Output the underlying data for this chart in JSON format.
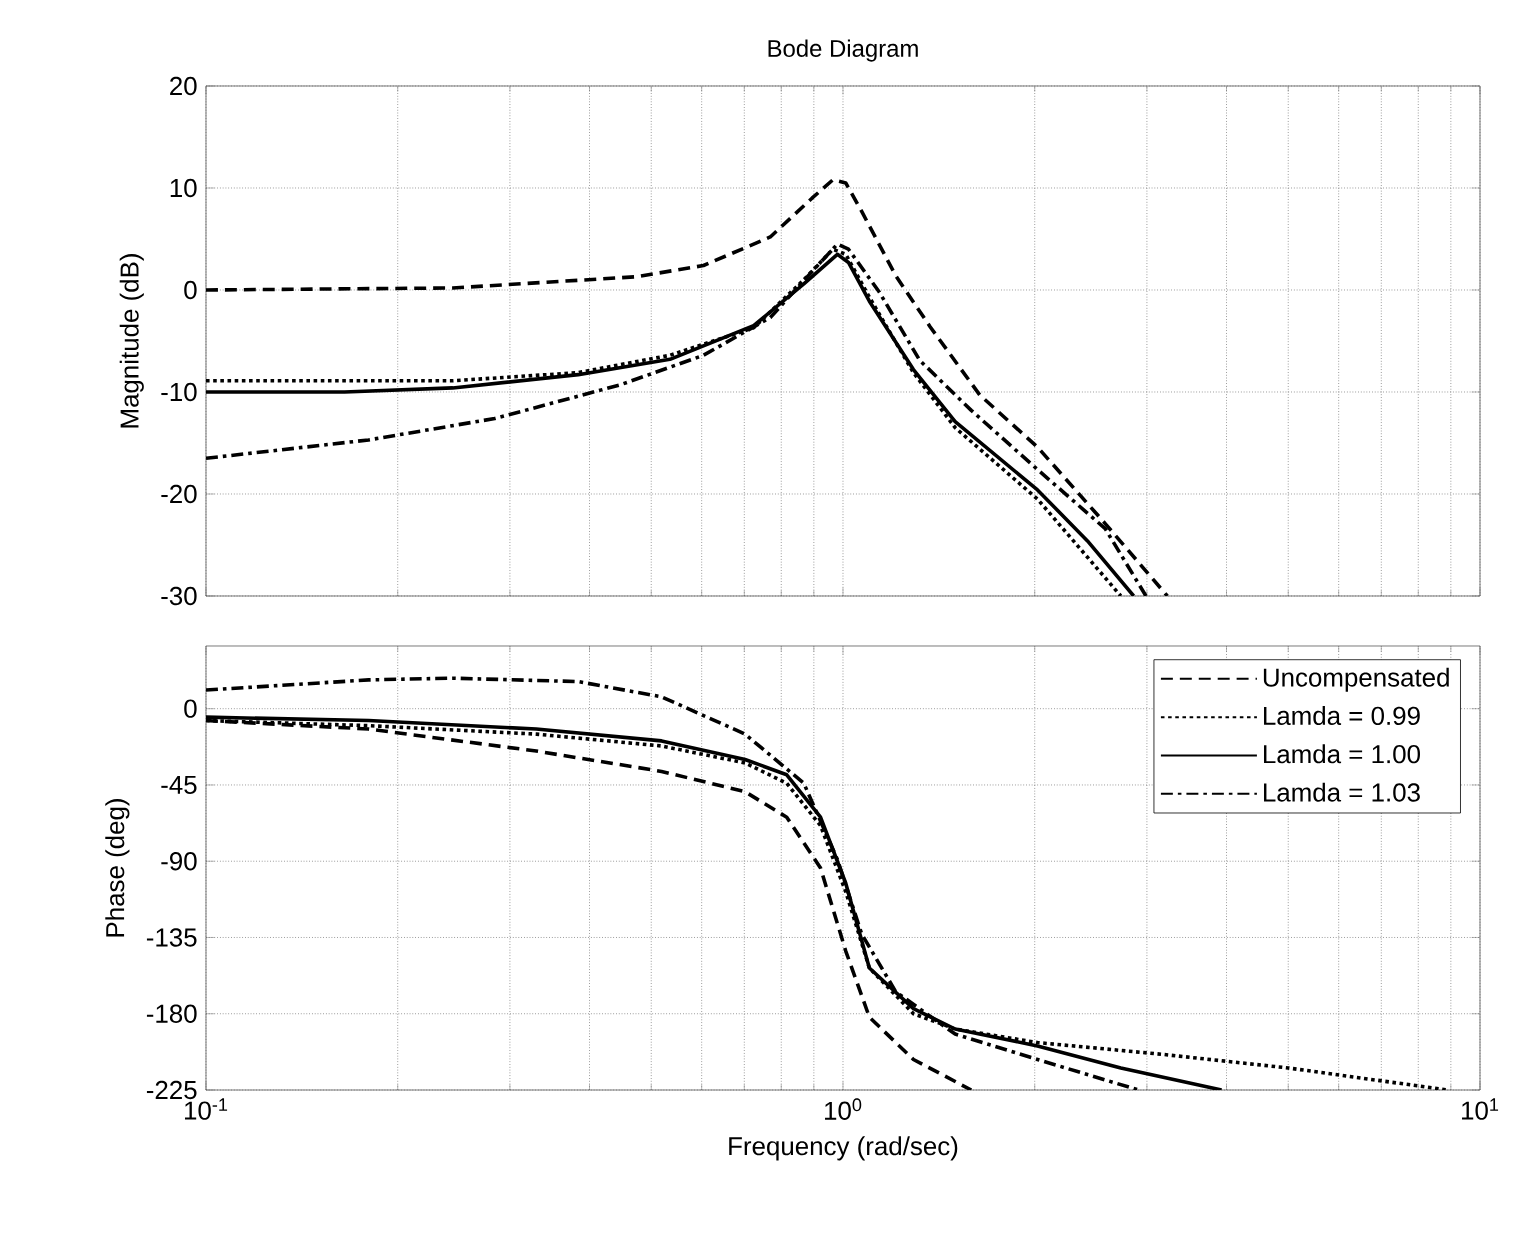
{
  "chart_data": [
    {
      "type": "line",
      "title": "Bode Diagram",
      "ylabel": "Magnitude (dB)",
      "log": "x",
      "grid": true,
      "tick_labels": "y",
      "xlim": [
        0.1,
        10
      ],
      "xticks": [
        {
          "value": 0.1,
          "label": null
        },
        {
          "value": 1,
          "label": null
        },
        {
          "value": 10,
          "label": null
        }
      ],
      "ylim": [
        -30,
        20
      ],
      "yticks": [
        -30,
        -20,
        -10,
        0,
        10,
        20
      ],
      "series": [
        {
          "color": "#000000",
          "line_style": "dashed",
          "x": [
            0.1,
            0.244,
            0.474,
            0.604,
            0.769,
            0.894,
            0.964,
            1.01,
            1.07,
            1.21,
            1.37,
            1.64,
            2.02,
            2.58,
            3.23
          ],
          "values": [
            0,
            0.2,
            1.3,
            2.4,
            5.2,
            9.0,
            10.8,
            10.5,
            7.7,
            1.4,
            -3.6,
            -10.3,
            -15.4,
            -22.9,
            -30
          ]
        },
        {
          "color": "#000000",
          "line_style": "dotted",
          "x": [
            0.1,
            0.244,
            0.384,
            0.535,
            0.724,
            0.868,
            0.964,
            1.01,
            1.1,
            1.29,
            1.5,
            2.02,
            2.73
          ],
          "values": [
            -8.9,
            -8.9,
            -8.1,
            -6.4,
            -3.7,
            1.0,
            4.0,
            3.5,
            -0.7,
            -8.1,
            -13.5,
            -20.5,
            -30
          ]
        },
        {
          "color": "#000000",
          "line_style": "solid",
          "x": [
            0.1,
            0.165,
            0.244,
            0.384,
            0.535,
            0.724,
            0.868,
            0.98,
            1.02,
            1.1,
            1.29,
            1.5,
            2.02,
            2.42,
            2.86
          ],
          "values": [
            -10,
            -10,
            -9.6,
            -8.3,
            -6.8,
            -3.5,
            0.6,
            3.5,
            2.7,
            -1.1,
            -7.8,
            -12.9,
            -19.6,
            -24.6,
            -30
          ]
        },
        {
          "color": "#000000",
          "line_style": "dashdot",
          "x": [
            0.1,
            0.18,
            0.284,
            0.447,
            0.604,
            0.769,
            0.894,
            0.98,
            1.02,
            1.14,
            1.32,
            1.59,
            2.02,
            2.58,
            2.99
          ],
          "values": [
            -16.5,
            -14.7,
            -12.6,
            -9.3,
            -6.4,
            -2.7,
            1.8,
            4.5,
            4.0,
            -0.2,
            -6.9,
            -11.8,
            -17.6,
            -23.4,
            -30
          ]
        }
      ]
    },
    {
      "type": "line",
      "xlabel": "Frequency  (rad/sec)",
      "ylabel": "Phase (deg)",
      "log": "x",
      "grid": true,
      "legend": "top right",
      "xlim": [
        0.1,
        10
      ],
      "xticks": [
        {
          "value": 0.1,
          "label": "10$^{-1}$"
        },
        {
          "value": 1,
          "label": "10$^{0}$"
        },
        {
          "value": 10,
          "label": "10$^{1}$"
        }
      ],
      "ylim": [
        -225,
        37
      ],
      "yticks": [
        -225,
        -180,
        -135,
        -90,
        -45,
        0
      ],
      "series": [
        {
          "name": "Uncompensated",
          "color": "#000000",
          "line_style": "dashed",
          "x": [
            0.1,
            0.18,
            0.33,
            0.519,
            0.702,
            0.816,
            0.922,
            1.01,
            1.1,
            1.29,
            1.59
          ],
          "values": [
            -7,
            -12,
            -25,
            -37,
            -49,
            -64,
            -94,
            -143,
            -182,
            -207,
            -225
          ]
        },
        {
          "name": "Lamda = 0.99",
          "color": "#000000",
          "line_style": "dotted",
          "x": [
            0.1,
            0.18,
            0.33,
            0.519,
            0.702,
            0.816,
            0.922,
            1.01,
            1.1,
            1.29,
            1.5,
            2.02,
            3.18,
            5.0,
            8.9
          ],
          "values": [
            -7,
            -10,
            -15,
            -22,
            -32,
            -44,
            -69,
            -108,
            -153,
            -180,
            -189,
            -197,
            -204,
            -212,
            -225
          ]
        },
        {
          "name": "Lamda = 1.00",
          "color": "#000000",
          "line_style": "solid",
          "x": [
            0.1,
            0.18,
            0.33,
            0.519,
            0.702,
            0.816,
            0.922,
            1.01,
            1.1,
            1.29,
            1.5,
            2.02,
            2.73,
            3.93
          ],
          "values": [
            -5,
            -7,
            -12,
            -19,
            -30,
            -39,
            -64,
            -103,
            -153,
            -177,
            -189,
            -199,
            -212,
            -225
          ]
        },
        {
          "name": "Lamda = 1.03",
          "color": "#000000",
          "line_style": "dashdot",
          "x": [
            0.1,
            0.18,
            0.244,
            0.384,
            0.519,
            0.702,
            0.868,
            0.98,
            1.07,
            1.21,
            1.5,
            2.02,
            2.91
          ],
          "values": [
            11,
            17,
            18,
            16,
            7,
            -15,
            -44,
            -89,
            -133,
            -167,
            -192,
            -207,
            -225
          ]
        }
      ]
    }
  ]
}
